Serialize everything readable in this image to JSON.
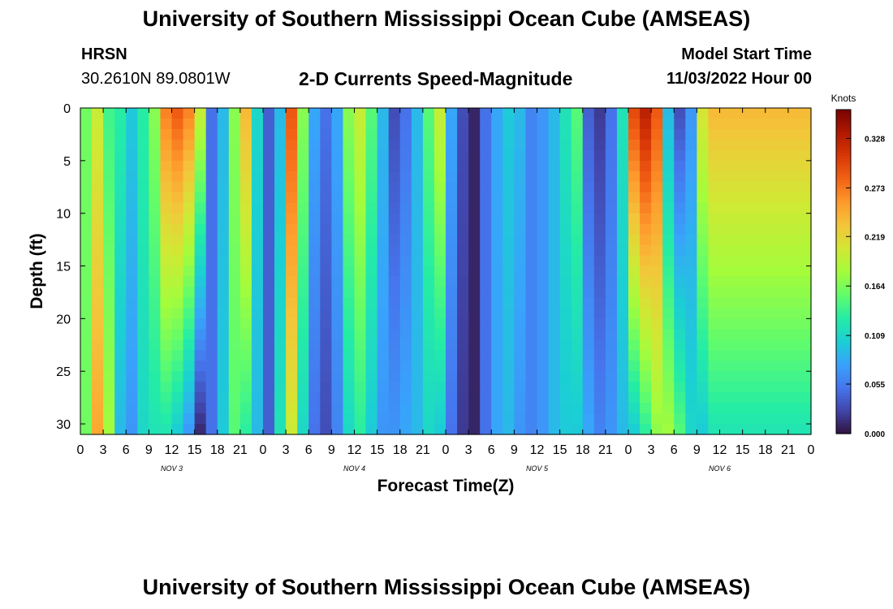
{
  "header": {
    "title": "University of Southern Mississippi Ocean Cube (AMSEAS)",
    "station": "HRSN",
    "coords": "30.2610N  89.0801W",
    "subtitle": "2-D Currents Speed-Magnitude",
    "model_label": "Model Start Time",
    "model_time": "11/03/2022 Hour 00"
  },
  "footer": {
    "title": "University of Southern Mississippi Ocean Cube (AMSEAS)"
  },
  "chart_data": {
    "type": "heatmap",
    "title": "2-D Currents Speed-Magnitude",
    "xlabel": "Forecast Time(Z)",
    "ylabel": "Depth (ft)",
    "x_ticks": [
      "0",
      "3",
      "6",
      "9",
      "12",
      "15",
      "18",
      "21",
      "0",
      "3",
      "6",
      "9",
      "12",
      "15",
      "18",
      "21",
      "0",
      "3",
      "6",
      "9",
      "12",
      "15",
      "18",
      "21",
      "0",
      "3",
      "6",
      "9",
      "12",
      "15",
      "18",
      "21",
      "0"
    ],
    "x_range_hours": [
      0,
      96
    ],
    "day_labels": [
      {
        "label": "NOV 3",
        "hour": 12
      },
      {
        "label": "NOV 4",
        "hour": 36
      },
      {
        "label": "NOV 5",
        "hour": 60
      },
      {
        "label": "NOV 6",
        "hour": 84
      }
    ],
    "y_ticks": [
      0,
      5,
      10,
      15,
      20,
      25,
      30
    ],
    "y_range": [
      0,
      31
    ],
    "y_inverted": true,
    "colorbar": {
      "unit": "Knots",
      "min": 0.0,
      "max": 0.36,
      "ticks": [
        {
          "value": 0.0,
          "label": "0.000"
        },
        {
          "value": 0.055,
          "label": "0.055"
        },
        {
          "value": 0.109,
          "label": "0.109"
        },
        {
          "value": 0.164,
          "label": "0.164"
        },
        {
          "value": 0.219,
          "label": "0.219"
        },
        {
          "value": 0.273,
          "label": "0.273"
        },
        {
          "value": 0.328,
          "label": "0.328"
        }
      ],
      "colormap": [
        "#30123b",
        "#4145ab",
        "#4675ed",
        "#39a2fc",
        "#1bcfd4",
        "#24eca6",
        "#61fc6c",
        "#a4fc3b",
        "#d1e834",
        "#f3c63a",
        "#fe9b2d",
        "#f36315",
        "#d93806",
        "#b11901",
        "#7a0402"
      ]
    },
    "columns": [
      {
        "hour": 0.0,
        "top": 0.16,
        "bottom": 0.16
      },
      {
        "hour": 1.5,
        "top": 0.2,
        "bottom": 0.25
      },
      {
        "hour": 3.0,
        "top": 0.14,
        "bottom": 0.18
      },
      {
        "hour": 4.5,
        "top": 0.13,
        "bottom": 0.09
      },
      {
        "hour": 6.0,
        "top": 0.1,
        "bottom": 0.07
      },
      {
        "hour": 7.5,
        "top": 0.13,
        "bottom": 0.11
      },
      {
        "hour": 9.0,
        "top": 0.17,
        "bottom": 0.12
      },
      {
        "hour": 10.5,
        "top": 0.27,
        "bottom": 0.12
      },
      {
        "hour": 12.0,
        "top": 0.29,
        "bottom": 0.1
      },
      {
        "hour": 13.5,
        "top": 0.27,
        "bottom": 0.07
      },
      {
        "hour": 15.0,
        "top": 0.2,
        "bottom": 0.01
      },
      {
        "hour": 16.5,
        "top": 0.05,
        "bottom": 0.05
      },
      {
        "hour": 18.0,
        "top": 0.09,
        "bottom": 0.1
      },
      {
        "hour": 19.5,
        "top": 0.17,
        "bottom": 0.15
      },
      {
        "hour": 21.0,
        "top": 0.24,
        "bottom": 0.13
      },
      {
        "hour": 22.5,
        "top": 0.11,
        "bottom": 0.09
      },
      {
        "hour": 24.0,
        "top": 0.04,
        "bottom": 0.04
      },
      {
        "hour": 25.5,
        "top": 0.09,
        "bottom": 0.12
      },
      {
        "hour": 27.0,
        "top": 0.29,
        "bottom": 0.2
      },
      {
        "hour": 28.5,
        "top": 0.17,
        "bottom": 0.11
      },
      {
        "hour": 30.0,
        "top": 0.08,
        "bottom": 0.05
      },
      {
        "hour": 31.5,
        "top": 0.05,
        "bottom": 0.03
      },
      {
        "hour": 33.0,
        "top": 0.08,
        "bottom": 0.06
      },
      {
        "hour": 34.5,
        "top": 0.17,
        "bottom": 0.11
      },
      {
        "hour": 36.0,
        "top": 0.2,
        "bottom": 0.13
      },
      {
        "hour": 37.5,
        "top": 0.15,
        "bottom": 0.1
      },
      {
        "hour": 39.0,
        "top": 0.09,
        "bottom": 0.07
      },
      {
        "hour": 40.5,
        "top": 0.03,
        "bottom": 0.07
      },
      {
        "hour": 42.0,
        "top": 0.05,
        "bottom": 0.08
      },
      {
        "hour": 43.5,
        "top": 0.09,
        "bottom": 0.09
      },
      {
        "hour": 45.0,
        "top": 0.15,
        "bottom": 0.11
      },
      {
        "hour": 46.5,
        "top": 0.2,
        "bottom": 0.1
      },
      {
        "hour": 48.0,
        "top": 0.08,
        "bottom": 0.05
      },
      {
        "hour": 49.5,
        "top": 0.03,
        "bottom": 0.02
      },
      {
        "hour": 51.0,
        "top": 0.01,
        "bottom": 0.01
      },
      {
        "hour": 52.5,
        "top": 0.05,
        "bottom": 0.05
      },
      {
        "hour": 54.0,
        "top": 0.08,
        "bottom": 0.08
      },
      {
        "hour": 55.5,
        "top": 0.1,
        "bottom": 0.09
      },
      {
        "hour": 57.0,
        "top": 0.09,
        "bottom": 0.07
      },
      {
        "hour": 58.5,
        "top": 0.06,
        "bottom": 0.06
      },
      {
        "hour": 60.0,
        "top": 0.07,
        "bottom": 0.07
      },
      {
        "hour": 61.5,
        "top": 0.09,
        "bottom": 0.09
      },
      {
        "hour": 63.0,
        "top": 0.12,
        "bottom": 0.1
      },
      {
        "hour": 64.5,
        "top": 0.15,
        "bottom": 0.1
      },
      {
        "hour": 66.0,
        "top": 0.04,
        "bottom": 0.08
      },
      {
        "hour": 67.5,
        "top": 0.02,
        "bottom": 0.06
      },
      {
        "hour": 69.0,
        "top": 0.05,
        "bottom": 0.07
      },
      {
        "hour": 70.5,
        "top": 0.12,
        "bottom": 0.09
      },
      {
        "hour": 72.0,
        "top": 0.3,
        "bottom": 0.1
      },
      {
        "hour": 73.5,
        "top": 0.33,
        "bottom": 0.13
      },
      {
        "hour": 75.0,
        "top": 0.29,
        "bottom": 0.17
      },
      {
        "hour": 76.5,
        "top": 0.09,
        "bottom": 0.18
      },
      {
        "hour": 78.0,
        "top": 0.03,
        "bottom": 0.15
      },
      {
        "hour": 79.5,
        "top": 0.07,
        "bottom": 0.11
      },
      {
        "hour": 81.0,
        "top": 0.21,
        "bottom": 0.1
      },
      {
        "hour": 82.5,
        "top": 0.24,
        "bottom": 0.12
      }
    ]
  }
}
